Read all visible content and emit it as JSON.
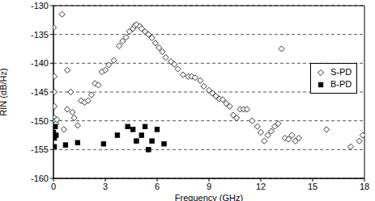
{
  "chart_data": {
    "type": "scatter",
    "xlabel": "Frequency (GHz)",
    "ylabel": "RIN (dB/Hz)",
    "xlim": [
      0,
      18
    ],
    "xticks": [
      0,
      3,
      6,
      9,
      12,
      15,
      18
    ],
    "ylim": [
      -160,
      -130
    ],
    "yticks": [
      -160,
      -155,
      -150,
      -145,
      -140,
      -135,
      -130
    ],
    "grid": true,
    "legend": "right",
    "series": [
      {
        "name": "S-PD",
        "color": "#000000",
        "marker": "open diamond",
        "x": [
          0.0,
          0.05,
          0.05,
          0.05,
          0.05,
          0.1,
          0.15,
          0.2,
          0.5,
          0.6,
          0.8,
          0.8,
          1.0,
          1.1,
          1.2,
          1.4,
          1.6,
          1.8,
          2.0,
          2.2,
          2.4,
          2.6,
          2.8,
          3.0,
          3.2,
          3.5,
          3.8,
          4.0,
          4.2,
          4.4,
          4.6,
          4.7,
          4.8,
          5.0,
          5.1,
          5.3,
          5.5,
          5.7,
          5.9,
          6.1,
          6.3,
          6.5,
          6.8,
          7.0,
          7.2,
          7.5,
          7.8,
          8.0,
          8.2,
          8.5,
          8.7,
          9.0,
          9.2,
          9.4,
          9.6,
          9.8,
          10.0,
          10.2,
          10.4,
          10.6,
          10.8,
          11.0,
          11.2,
          11.5,
          11.8,
          12.0,
          12.2,
          12.4,
          12.6,
          12.8,
          13.0,
          13.2,
          13.4,
          13.6,
          13.8,
          14.0,
          14.2,
          15.8,
          17.2,
          17.7,
          17.9
        ],
        "values": [
          -133.8,
          -142.3,
          -145,
          -147.5,
          -149.5,
          -150,
          -150.5,
          -149.8,
          -131.5,
          -151.5,
          -141.2,
          -148,
          -145,
          -148.5,
          -149.5,
          -150.8,
          -146.5,
          -146.8,
          -146.5,
          -145.5,
          -143.5,
          -143.8,
          -141.5,
          -141.2,
          -140.3,
          -139.5,
          -137,
          -136.2,
          -135.5,
          -134.5,
          -134,
          -133.5,
          -133.3,
          -133.6,
          -134,
          -134.5,
          -135,
          -135.6,
          -136.5,
          -137.3,
          -138,
          -139,
          -139.7,
          -140.2,
          -141,
          -142,
          -142.3,
          -142.3,
          -142.5,
          -143,
          -144,
          -144.7,
          -145.2,
          -145.7,
          -146.2,
          -146.3,
          -147,
          -147.5,
          -149,
          -149.5,
          -148,
          -148,
          -148,
          -150,
          -151,
          -152,
          -153.5,
          -152.5,
          -151.8,
          -151,
          -150.5,
          -137.5,
          -153,
          -153.2,
          -152.5,
          -153.5,
          -153,
          -151.5,
          -154.5,
          -153.5,
          -152.5
        ]
      },
      {
        "name": "B-PD",
        "color": "#000000",
        "marker": "square",
        "x": [
          0.0,
          0.05,
          0.05,
          0.1,
          0.15,
          0.7,
          1.4,
          2.9,
          3.7,
          4.3,
          4.6,
          4.8,
          5.1,
          5.3,
          5.5,
          5.7,
          6.0,
          6.4
        ],
        "values": [
          -152,
          -153,
          -154.5,
          -151,
          -152.5,
          -154.2,
          -153.8,
          -154,
          -152.5,
          -151,
          -151.5,
          -153.5,
          -152.5,
          -151,
          -155,
          -153.5,
          -151.5,
          -154
        ]
      }
    ]
  }
}
